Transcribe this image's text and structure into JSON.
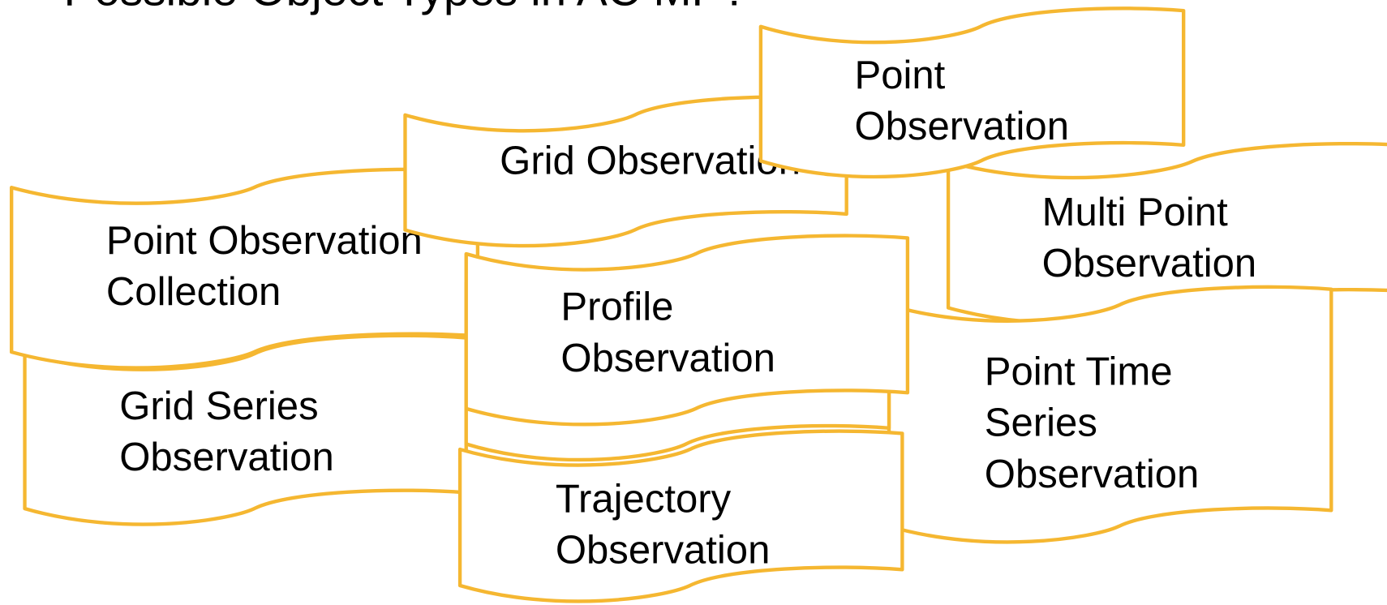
{
  "title": "Possible Object Types in AC MP?",
  "nodes": [
    {
      "label": [
        "Grid Series",
        "Observation"
      ]
    },
    {
      "label": [
        "Point Observation",
        "Collection"
      ]
    },
    {
      "label": [
        "Grid Observation"
      ]
    },
    {
      "label": [
        "Multi Point",
        "Observation"
      ]
    },
    {
      "label": [
        "Point Time",
        "Series",
        "Observation"
      ]
    },
    {
      "label": [
        "Profile",
        "Observation"
      ]
    },
    {
      "label": [
        "Trajectory",
        "Observation"
      ]
    },
    {
      "label": [
        "Point",
        "Observation"
      ]
    }
  ]
}
